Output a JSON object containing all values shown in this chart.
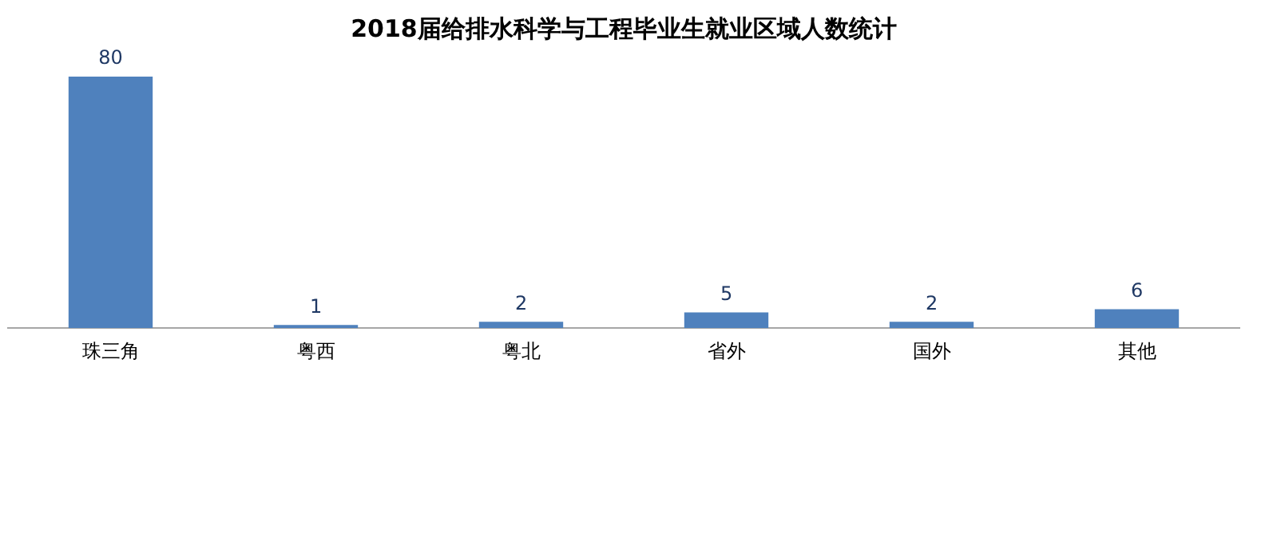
{
  "chart_data": {
    "type": "bar",
    "title": "2018届给排水科学与工程毕业生就业区域人数统计",
    "categories": [
      "珠三角",
      "粤西",
      "粤北",
      "省外",
      "国外",
      "其他"
    ],
    "values": [
      80,
      1,
      2,
      5,
      2,
      6
    ],
    "color": "#4f81bd",
    "data_labels": true,
    "grid": false,
    "legend": false
  }
}
